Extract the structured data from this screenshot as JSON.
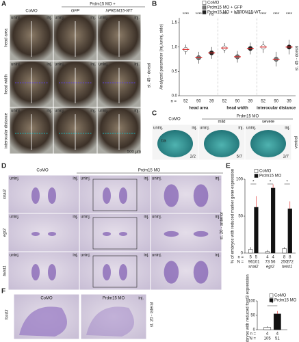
{
  "panels": [
    "A",
    "B",
    "C",
    "D",
    "E",
    "F"
  ],
  "photos": {
    "uninj": "uninj.",
    "inj": "inj.",
    "a": {
      "columns": [
        "CoMO",
        "GFP",
        "hPRDM15-WT"
      ],
      "group": "Prdm15 MO +",
      "rows": [
        "head area",
        "head width",
        "interocular distance"
      ],
      "row_colors": [
        "#e08a1e",
        "#5b3fd6",
        "#1fb0b8"
      ],
      "scale": "500 µm",
      "side": "st. 45 - dorsal"
    },
    "c": {
      "columns": [
        "CoMO",
        "mild",
        "severe"
      ],
      "group": "Prdm15 MO",
      "label": "ba",
      "fractions": [
        "2/2",
        "5/7",
        "2/7"
      ],
      "side": "ventral"
    },
    "d": {
      "columns": [
        "CoMO",
        "Prdm15 MO"
      ],
      "rows": [
        "snai2",
        "egr2",
        "twist1"
      ],
      "side": "st. 20 - anterior"
    },
    "f": {
      "columns": [
        "CoMO",
        "Prdm15 MO"
      ],
      "row": "foxd3",
      "side": "st. 20 - lateral"
    }
  },
  "chart_data": [
    {
      "type": "strip",
      "ylabel": "Analyzed parameter (inj./uninj. side)",
      "categories": [
        "head area",
        "head width",
        "interocular distance"
      ],
      "category_colors": [
        "#e08a1e",
        "#5b3fd6",
        "#1fb0b8"
      ],
      "series": [
        {
          "name": "CoMO",
          "color": "#ffffff",
          "values": [
            0.95,
            0.98,
            1.0
          ],
          "errors": [
            0.1,
            0.1,
            0.12
          ],
          "n": [
            52,
            52,
            52
          ]
        },
        {
          "name": "Prdm15 MO + GFP",
          "color": "#777777",
          "values": [
            0.78,
            0.8,
            0.75
          ],
          "errors": [
            0.12,
            0.12,
            0.15
          ],
          "n": [
            90,
            90,
            90
          ]
        },
        {
          "name": "Prdm15 MO + hPRDM15-WT",
          "color": "#222222",
          "values": [
            0.88,
            0.97,
            1.0
          ],
          "errors": [
            0.12,
            0.12,
            0.15
          ],
          "n": [
            39,
            39,
            39
          ]
        }
      ],
      "n_label": "n =",
      "significance": [
        [
          "****",
          "****",
          "ns"
        ],
        [
          "****",
          "****",
          "****"
        ],
        [
          "****",
          "****",
          "****"
        ]
      ],
      "ylim": [
        0,
        1.6
      ],
      "yticks": [
        {
          "value": 0,
          "label": "0.0"
        },
        {
          "value": 0.5,
          "label": "0.5"
        },
        {
          "value": 1,
          "label": "1.0"
        },
        {
          "value": 1.5,
          "label": "1.5"
        }
      ]
    },
    {
      "type": "bar",
      "ylabel": "% of embryos with reduced marker gene expression",
      "categories": [
        "snai2",
        "egr2",
        "twist1"
      ],
      "series": [
        {
          "name": "CoMO",
          "color": "#ffffff",
          "values": [
            5,
            2,
            6
          ],
          "errors": [
            3,
            2,
            2
          ],
          "n": [
            5,
            4,
            8
          ],
          "N": [
            96,
            73,
            250
          ]
        },
        {
          "name": "Prdm15 MO",
          "color": "#111111",
          "values": [
            62,
            88,
            60
          ],
          "errors": [
            15,
            5,
            10
          ],
          "n": [
            5,
            4,
            8
          ],
          "N": [
            101,
            56,
            272
          ]
        }
      ],
      "n_label": "n =",
      "N_label": "N =",
      "significance": [
        "*",
        "*",
        "*"
      ],
      "ylim": [
        0,
        100
      ],
      "yticks": [
        0,
        50,
        100
      ]
    },
    {
      "type": "bar",
      "ylabel": "% of embryos with reduced foxd3 expression",
      "categories": [
        null
      ],
      "series": [
        {
          "name": "CoMO",
          "color": "#ffffff",
          "values": [
            8
          ],
          "errors": [
            4
          ],
          "n": [
            4
          ],
          "N": [
            105
          ]
        },
        {
          "name": "Prdm15 MO",
          "color": "#111111",
          "values": [
            55
          ],
          "errors": [
            10
          ],
          "n": [
            4
          ],
          "N": [
            51
          ]
        }
      ],
      "n_label": "n =",
      "N_label": "N =",
      "significance": [
        "*"
      ],
      "ylim": [
        0,
        100
      ],
      "yticks": [
        0,
        50,
        100
      ]
    }
  ]
}
